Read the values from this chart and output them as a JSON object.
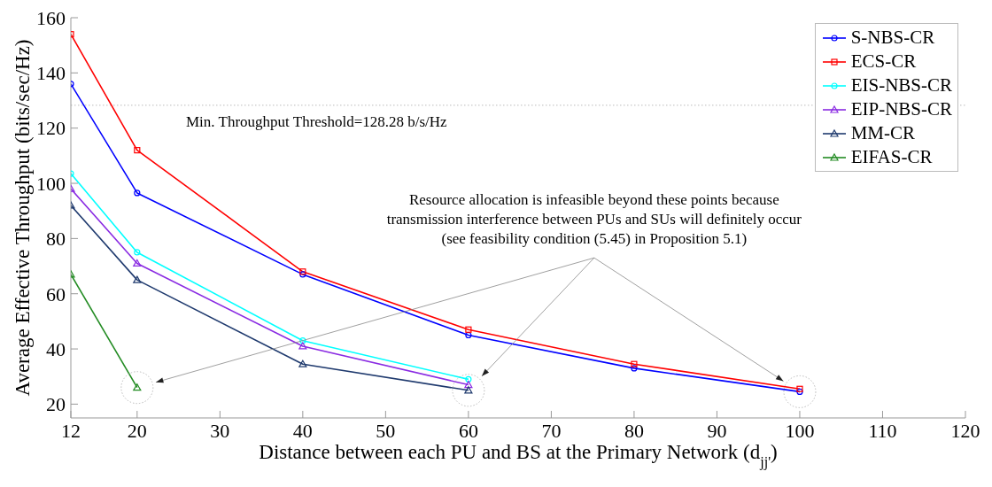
{
  "chart_data": {
    "type": "line",
    "xlabel": "Distance between each PU and BS at the Primary Network (d$_{jj'}$)",
    "ylabel": "Average Effective Throughput (bits/sec/Hz)",
    "xlim": [
      12,
      120
    ],
    "xticks": [
      12,
      20,
      30,
      40,
      50,
      60,
      70,
      80,
      90,
      100,
      110,
      120
    ],
    "ylim": [
      15,
      160
    ],
    "yticks": [
      20,
      40,
      60,
      80,
      100,
      120,
      140,
      160
    ],
    "legend": "top right",
    "series": [
      {
        "name": "S-NBS-CR",
        "color": "#0000ff",
        "marker": "circle",
        "x": [
          12,
          20,
          40,
          60,
          80,
          100
        ],
        "values": [
          136,
          96.5,
          67,
          45,
          33,
          24.5
        ]
      },
      {
        "name": "ECS-CR",
        "color": "#ff0000",
        "marker": "square",
        "x": [
          12,
          20,
          40,
          60,
          80,
          100
        ],
        "values": [
          154,
          112,
          68,
          47,
          34.5,
          25.5
        ]
      },
      {
        "name": "EIS-NBS-CR",
        "color": "#00ffff",
        "marker": "circle",
        "x": [
          12,
          20,
          40,
          60
        ],
        "values": [
          103.5,
          75,
          43,
          29
        ]
      },
      {
        "name": "EIP-NBS-CR",
        "color": "#8a2be2",
        "marker": "triangle",
        "x": [
          12,
          20,
          40,
          60
        ],
        "values": [
          98,
          71,
          41,
          27
        ]
      },
      {
        "name": "MM-CR",
        "color": "#1f3a6e",
        "marker": "triangle",
        "x": [
          12,
          20,
          40,
          60
        ],
        "values": [
          92,
          65,
          34.5,
          25
        ]
      },
      {
        "name": "EIFAS-CR",
        "color": "#228b22",
        "marker": "triangle",
        "x": [
          12,
          20
        ],
        "values": [
          67,
          26
        ]
      }
    ],
    "ref_lines": [
      {
        "axis": "y",
        "value": 128.28,
        "label": "Min. Throughput Threshold=128.28 b/s/Hz",
        "color": "#bbbbbb",
        "line_style": "dotted"
      }
    ],
    "annotations": [
      "Resource allocation is infeasible beyond these points because\ntransmission interference between PUs and SUs will definitely occur\n(see feasibility condition (5.45) in Proposition 5.1)"
    ]
  }
}
